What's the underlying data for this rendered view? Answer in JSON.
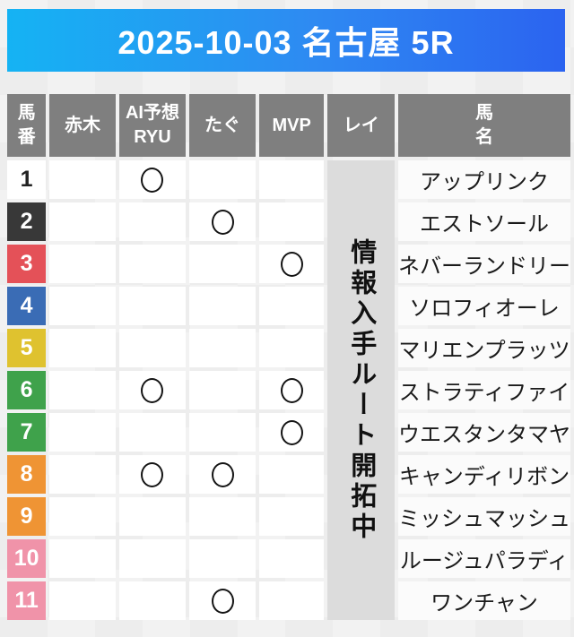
{
  "header": {
    "title": "2025-10-03 名古屋 5R",
    "gradient_left": "#15b3f3",
    "gradient_right": "#2b63f0"
  },
  "table": {
    "columns": [
      {
        "label": "馬\n番"
      },
      {
        "label": "赤木"
      },
      {
        "label": "AI予想\nRYU"
      },
      {
        "label": "たぐ"
      },
      {
        "label": "MVP"
      },
      {
        "label": "レイ"
      },
      {
        "label": "馬\n名"
      }
    ],
    "header_bg": "#7f7f7f",
    "rei_status": "情報入手ルート開拓中",
    "rei_bg": "#dcdcdc",
    "mark_symbol": "○",
    "rows": [
      {
        "num": "1",
        "frame_color": "#ffffff",
        "number_text_color": "#222222",
        "marks": [
          "",
          "○",
          "",
          ""
        ],
        "name": "アップリンク"
      },
      {
        "num": "2",
        "frame_color": "#383838",
        "number_text_color": "#ffffff",
        "marks": [
          "",
          "",
          "○",
          ""
        ],
        "name": "エストソール"
      },
      {
        "num": "3",
        "frame_color": "#e45158",
        "number_text_color": "#ffffff",
        "marks": [
          "",
          "",
          "",
          "○"
        ],
        "name": "ネバーランドリー"
      },
      {
        "num": "4",
        "frame_color": "#3a6cb5",
        "number_text_color": "#ffffff",
        "marks": [
          "",
          "",
          "",
          ""
        ],
        "name": "ソロフィオーレ"
      },
      {
        "num": "5",
        "frame_color": "#dfc22f",
        "number_text_color": "#ffffff",
        "marks": [
          "",
          "",
          "",
          ""
        ],
        "name": "マリエンプラッツ"
      },
      {
        "num": "6",
        "frame_color": "#3fa24b",
        "number_text_color": "#ffffff",
        "marks": [
          "",
          "○",
          "",
          "○"
        ],
        "name": "ストラティファイ"
      },
      {
        "num": "7",
        "frame_color": "#3fa24b",
        "number_text_color": "#ffffff",
        "marks": [
          "",
          "",
          "",
          "○"
        ],
        "name": "ウエスタンタマヤ"
      },
      {
        "num": "8",
        "frame_color": "#ef9434",
        "number_text_color": "#ffffff",
        "marks": [
          "",
          "○",
          "○",
          ""
        ],
        "name": "キャンディリボン"
      },
      {
        "num": "9",
        "frame_color": "#ef9434",
        "number_text_color": "#ffffff",
        "marks": [
          "",
          "",
          "",
          ""
        ],
        "name": "ミッシュマッシュ"
      },
      {
        "num": "10",
        "frame_color": "#f093a9",
        "number_text_color": "#ffffff",
        "marks": [
          "",
          "",
          "",
          ""
        ],
        "name": "ルージュパラディ"
      },
      {
        "num": "11",
        "frame_color": "#f093a9",
        "number_text_color": "#ffffff",
        "marks": [
          "",
          "",
          "○",
          ""
        ],
        "name": "ワンチャン"
      }
    ]
  }
}
